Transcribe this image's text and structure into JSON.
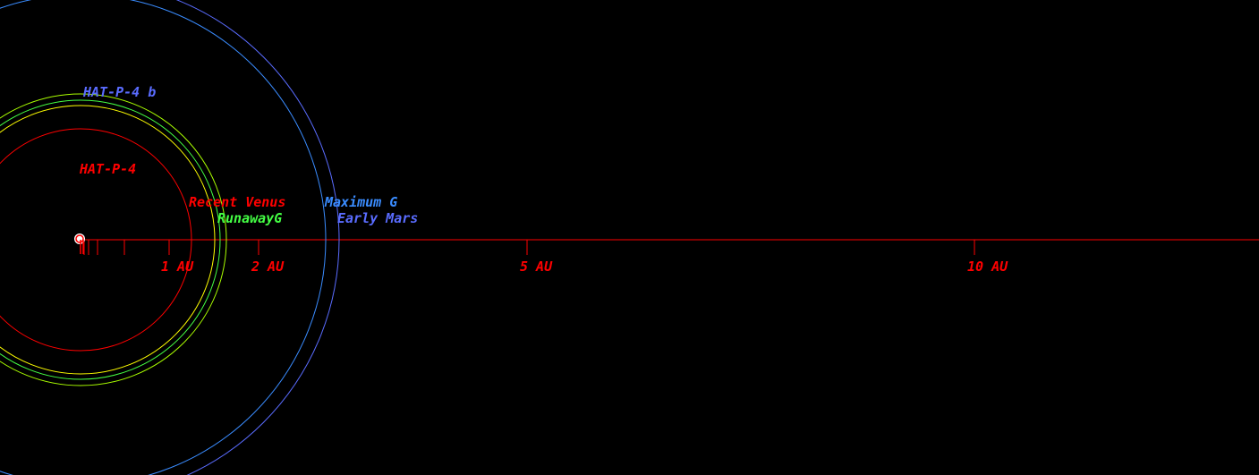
{
  "colors": {
    "background": "#000000",
    "axis": "#ff0000",
    "star": "#ff0000",
    "planet": "#5a6cff",
    "recent_venus": "#ff0000",
    "runaway_greenhouse": "#44ff44",
    "maximum_greenhouse": "#3a8cff",
    "early_mars": "#5a6cff",
    "inner_hz_orbit": "#ffff00"
  },
  "star": {
    "name": "HAT-P-4",
    "icon": "star-marker-icon"
  },
  "planet": {
    "name": "HAT-P-4 b"
  },
  "habitable_zone": {
    "recent_venus": "Recent Venus",
    "runaway_greenhouse": "RunawayG",
    "maximum_greenhouse": "Maximum G",
    "early_mars": "Early Mars"
  },
  "axis": {
    "ticks_au": [
      0.05,
      0.1,
      0.2,
      0.5,
      1,
      2,
      5,
      10
    ],
    "labels": [
      {
        "au": 1,
        "text": "1 AU"
      },
      {
        "au": 2,
        "text": "2 AU"
      },
      {
        "au": 5,
        "text": "5 AU"
      },
      {
        "au": 10,
        "text": "10 AU"
      }
    ]
  }
}
